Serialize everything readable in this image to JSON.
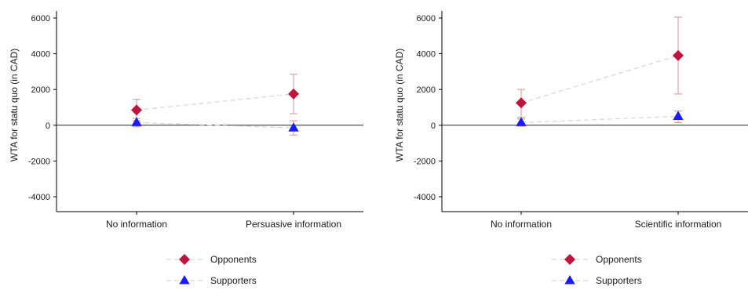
{
  "chart_data": [
    {
      "type": "scatter",
      "ylabel": "WTA for statu quo (in CAD)",
      "xlabel": "",
      "title": "",
      "categories": [
        "No information",
        "Persuasive information"
      ],
      "yticks": [
        6000,
        4000,
        2000,
        0,
        -2000,
        -4000
      ],
      "ylim": [
        -4800,
        6300
      ],
      "zero_line": true,
      "grid": false,
      "legend_position": "bottom",
      "series": [
        {
          "name": "Opponents",
          "marker": "diamond",
          "color": "#c0143c",
          "values": [
            850,
            1750
          ],
          "ci_low": [
            250,
            650
          ],
          "ci_high": [
            1450,
            2850
          ]
        },
        {
          "name": "Supporters",
          "marker": "triangle",
          "color": "#1a1aff",
          "values": [
            150,
            -150
          ],
          "ci_low": [
            -80,
            -550
          ],
          "ci_high": [
            380,
            250
          ]
        }
      ]
    },
    {
      "type": "scatter",
      "ylabel": "WTA for statu quo (in CAD)",
      "xlabel": "",
      "title": "",
      "categories": [
        "No information",
        "Scientific information"
      ],
      "yticks": [
        6000,
        4000,
        2000,
        0,
        -2000,
        -4000
      ],
      "ylim": [
        -4800,
        6300
      ],
      "zero_line": true,
      "grid": false,
      "legend_position": "bottom",
      "series": [
        {
          "name": "Opponents",
          "marker": "diamond",
          "color": "#c0143c",
          "values": [
            1250,
            3900
          ],
          "ci_low": [
            450,
            1750
          ],
          "ci_high": [
            2000,
            6050
          ]
        },
        {
          "name": "Supporters",
          "marker": "triangle",
          "color": "#1a1aff",
          "values": [
            150,
            500
          ],
          "ci_low": [
            -50,
            150
          ],
          "ci_high": [
            350,
            800
          ]
        }
      ]
    }
  ],
  "styles": {
    "connector_color": "#d6d6d6",
    "errorbar_color": "#d7a6a6",
    "axis_color": "#000000"
  }
}
